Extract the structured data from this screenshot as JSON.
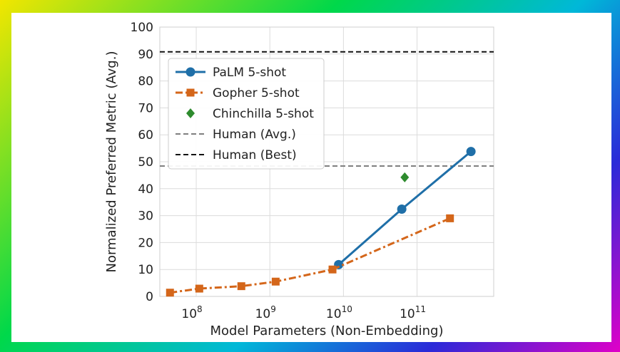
{
  "chart_data": {
    "type": "line",
    "xlabel": "Model Parameters (Non-Embedding)",
    "ylabel": "Normalized Preferred Metric (Avg.)",
    "xscale": "log",
    "xlim": [
      32000000.0,
      1100000000000.0
    ],
    "ylim": [
      0,
      100
    ],
    "yticks": [
      0,
      10,
      20,
      30,
      40,
      50,
      60,
      70,
      80,
      90,
      100
    ],
    "xticks": [
      {
        "value": 100000000.0,
        "base": "10",
        "exp": "8"
      },
      {
        "value": 1000000000.0,
        "base": "10",
        "exp": "9"
      },
      {
        "value": 10000000000.0,
        "base": "10",
        "exp": "10"
      },
      {
        "value": 100000000000.0,
        "base": "10",
        "exp": "11"
      }
    ],
    "grid": true,
    "legend_position": "upper-left",
    "series": [
      {
        "name": "PaLM 5-shot",
        "color": "#1f6fa8",
        "dash": "solid",
        "marker": "circle",
        "points": [
          [
            8600000000.0,
            11.8
          ],
          [
            62000000000.0,
            32.4
          ],
          [
            540000000000.0,
            53.8
          ]
        ]
      },
      {
        "name": "Gopher 5-shot",
        "color": "#d4661a",
        "dash": "dashdot",
        "marker": "square",
        "points": [
          [
            44000000.0,
            1.4
          ],
          [
            110000000.0,
            2.9
          ],
          [
            410000000.0,
            3.8
          ],
          [
            1200000000.0,
            5.5
          ],
          [
            7100000000.0,
            10.0
          ],
          [
            280000000000.0,
            29.0
          ]
        ]
      },
      {
        "name": "Chinchilla 5-shot",
        "color": "#2e8b2e",
        "dash": "none",
        "marker": "diamond",
        "points": [
          [
            68000000000.0,
            44.2
          ]
        ]
      }
    ],
    "hlines": [
      {
        "name": "Human (Avg.)",
        "y": 48.4,
        "color": "#808080",
        "dash": "dashed"
      },
      {
        "name": "Human (Best)",
        "y": 90.8,
        "color": "#111111",
        "dash": "dashed"
      }
    ]
  }
}
